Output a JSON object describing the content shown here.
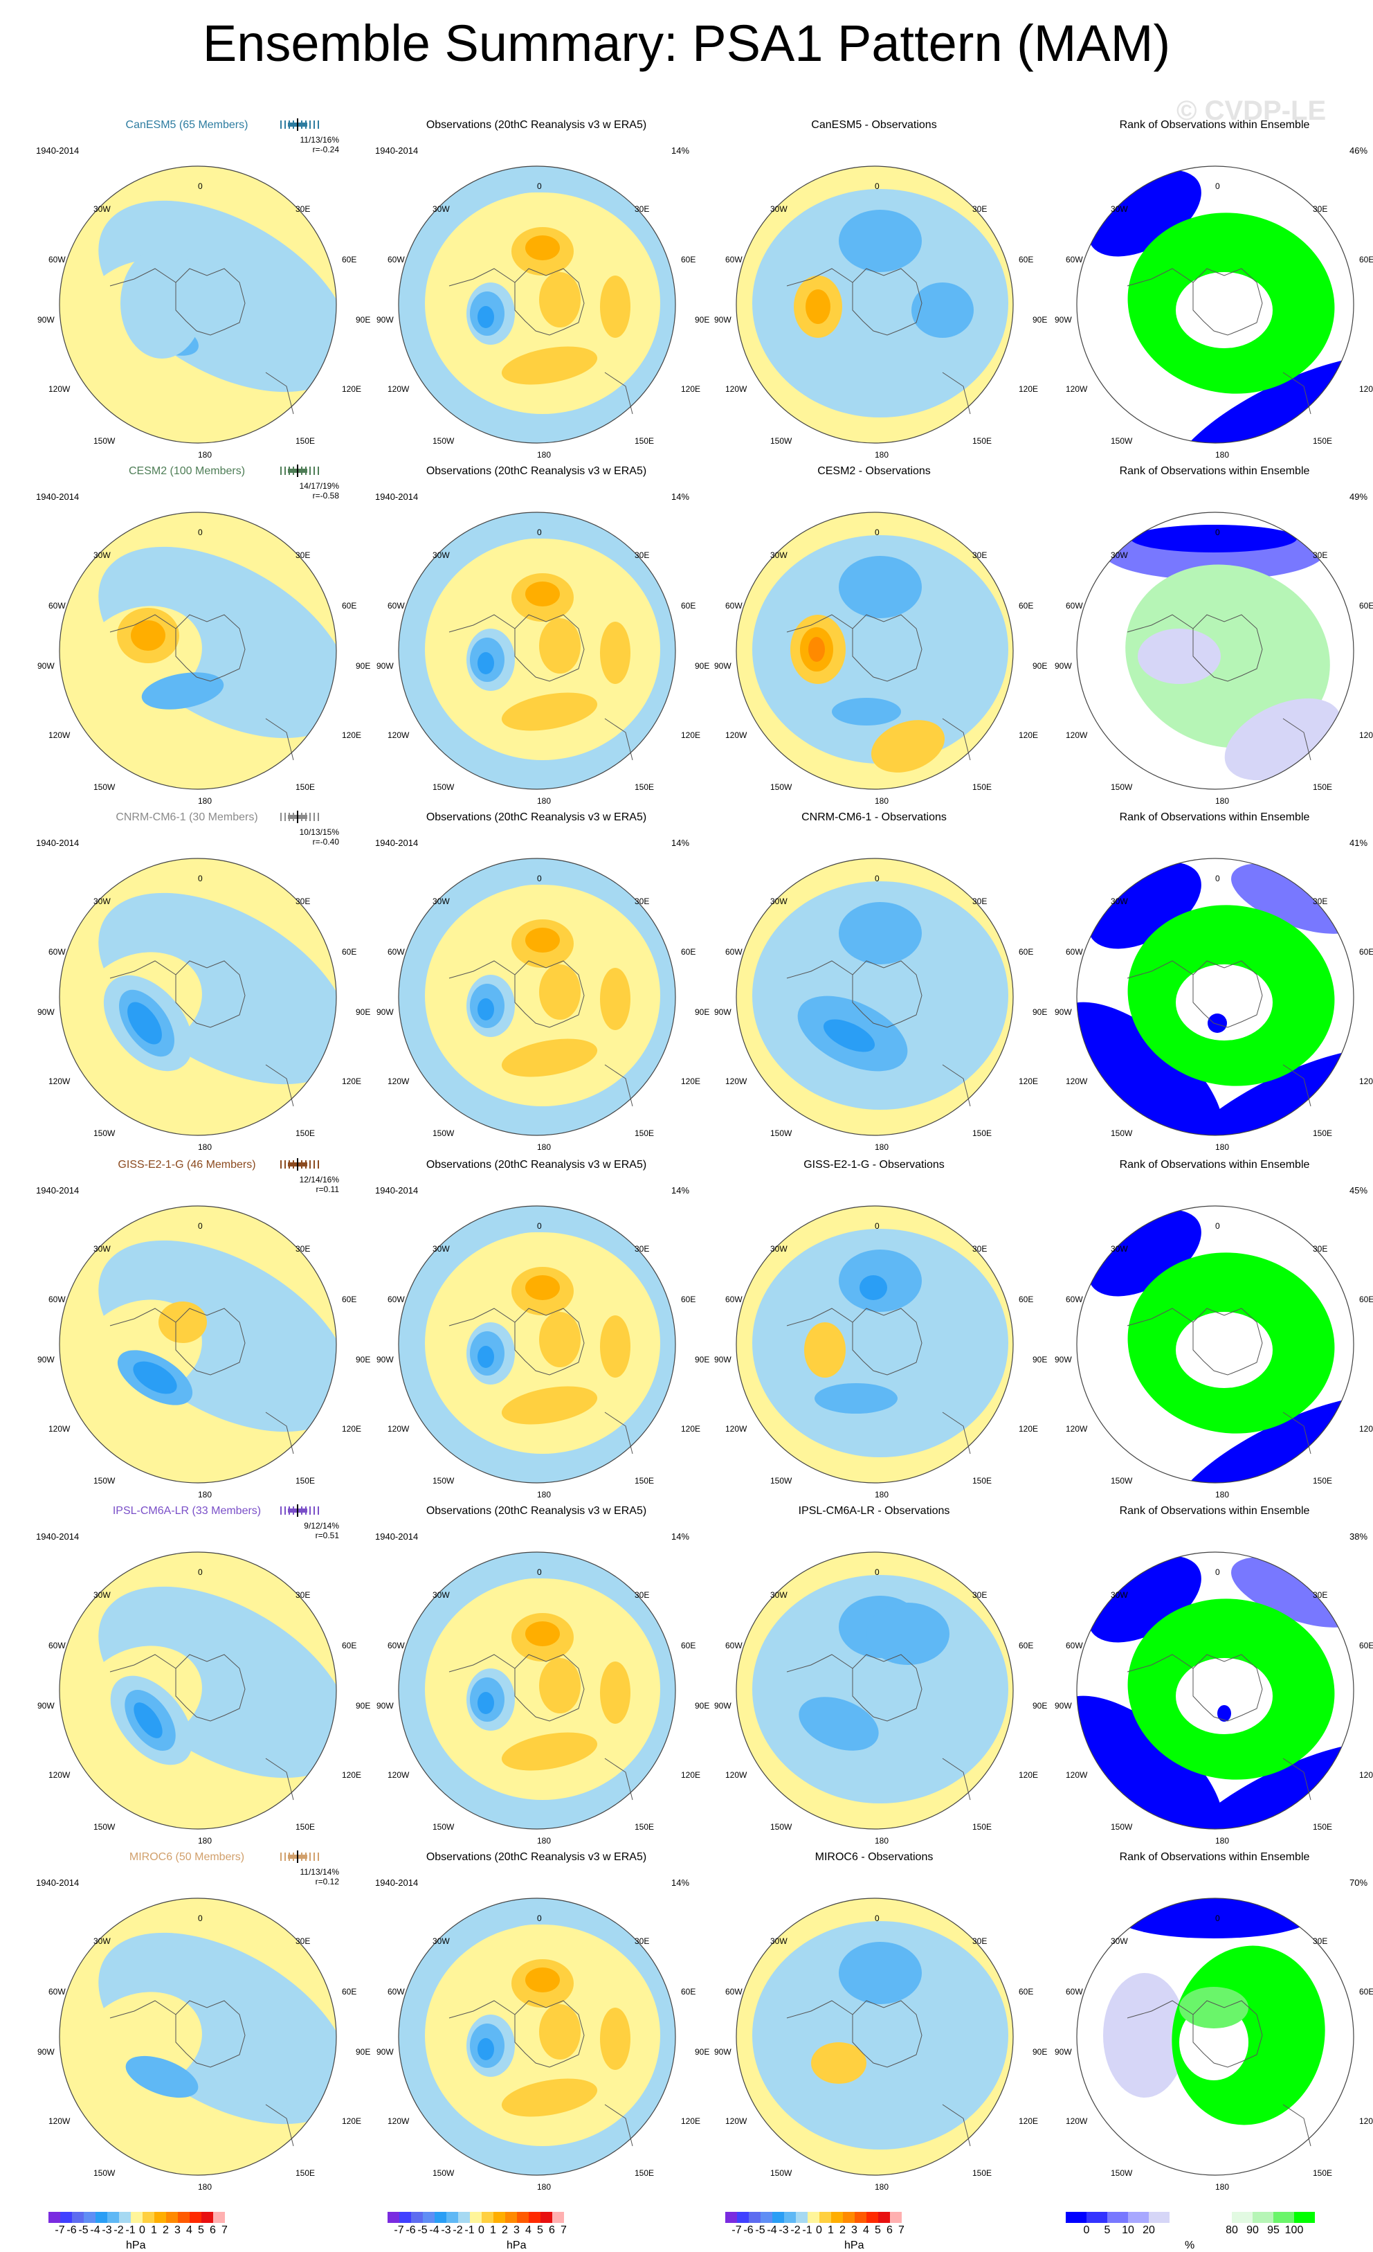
{
  "title": "Ensemble Summary: PSA1 Pattern (MAM)",
  "watermark": "© CVDP-LE",
  "longitude_labels": {
    "0": "0",
    "30E": "30E",
    "60E": "60E",
    "90E": "90E",
    "120E": "120E",
    "150E": "150E",
    "180": "180",
    "150W": "150W",
    "120W": "120W",
    "90W": "90W",
    "60W": "60W",
    "30W": "30W"
  },
  "obs_title": "Observations (20thC Reanalysis v3 w ERA5)",
  "rank_title": "Rank of Observations within Ensemble",
  "period": "1940-2014",
  "obs_pct": "14%",
  "rows": [
    {
      "model": "CanESM5 (65 Members)",
      "model_color": "#2d7ca0",
      "stats": "11/13/16%",
      "r": "r=-0.24",
      "diff_title": "CanESM5 - Observations",
      "rank_pct": "46%"
    },
    {
      "model": "CESM2 (100 Members)",
      "model_color": "#4e7d56",
      "stats": "14/17/19%",
      "r": "r=-0.58",
      "diff_title": "CESM2 - Observations",
      "rank_pct": "49%"
    },
    {
      "model": "CNRM-CM6-1 (30 Members)",
      "model_color": "#8a8a8a",
      "stats": "10/13/15%",
      "r": "r=-0.40",
      "diff_title": "CNRM-CM6-1 - Observations",
      "rank_pct": "41%"
    },
    {
      "model": "GISS-E2-1-G (46 Members)",
      "model_color": "#8b4a1f",
      "stats": "12/14/16%",
      "r": "r=0.11",
      "diff_title": "GISS-E2-1-G - Observations",
      "rank_pct": "45%"
    },
    {
      "model": "IPSL-CM6A-LR (33 Members)",
      "model_color": "#7a4fc8",
      "stats": "9/12/14%",
      "r": "r=0.51",
      "diff_title": "IPSL-CM6A-LR - Observations",
      "rank_pct": "38%"
    },
    {
      "model": "MIROC6 (50 Members)",
      "model_color": "#d1a06c",
      "stats": "11/13/14%",
      "r": "r=0.12",
      "diff_title": "MIROC6 - Observations",
      "rank_pct": "70%"
    }
  ],
  "hpa_colorbar": {
    "colors": [
      "#7a2be0",
      "#4040ff",
      "#5d6cf0",
      "#5f8ef5",
      "#2a9ef5",
      "#5fb8f5",
      "#a6d9f2",
      "#fff59a",
      "#ffd040",
      "#ffae00",
      "#ff8a00",
      "#ff5a00",
      "#ff2a00",
      "#e81010",
      "#ffb0b0"
    ],
    "tick_labels": [
      "-7",
      "-6",
      "-5",
      "-4",
      "-3",
      "-2",
      "-1",
      "0",
      "1",
      "2",
      "3",
      "4",
      "5",
      "6",
      "7"
    ],
    "unit": "hPa"
  },
  "rank_colorbar": {
    "colors": [
      "#0000ff",
      "#3333ff",
      "#7878ff",
      "#a8a8ff",
      "#d6d6f7",
      "#ffffff",
      "#ffffff",
      "#ffffff",
      "#e2fae2",
      "#b6f5b6",
      "#6af56a",
      "#00ff00"
    ],
    "tick_labels": [
      "0",
      "5",
      "10",
      "20",
      "80",
      "90",
      "95",
      "100"
    ],
    "unit": "%"
  }
}
